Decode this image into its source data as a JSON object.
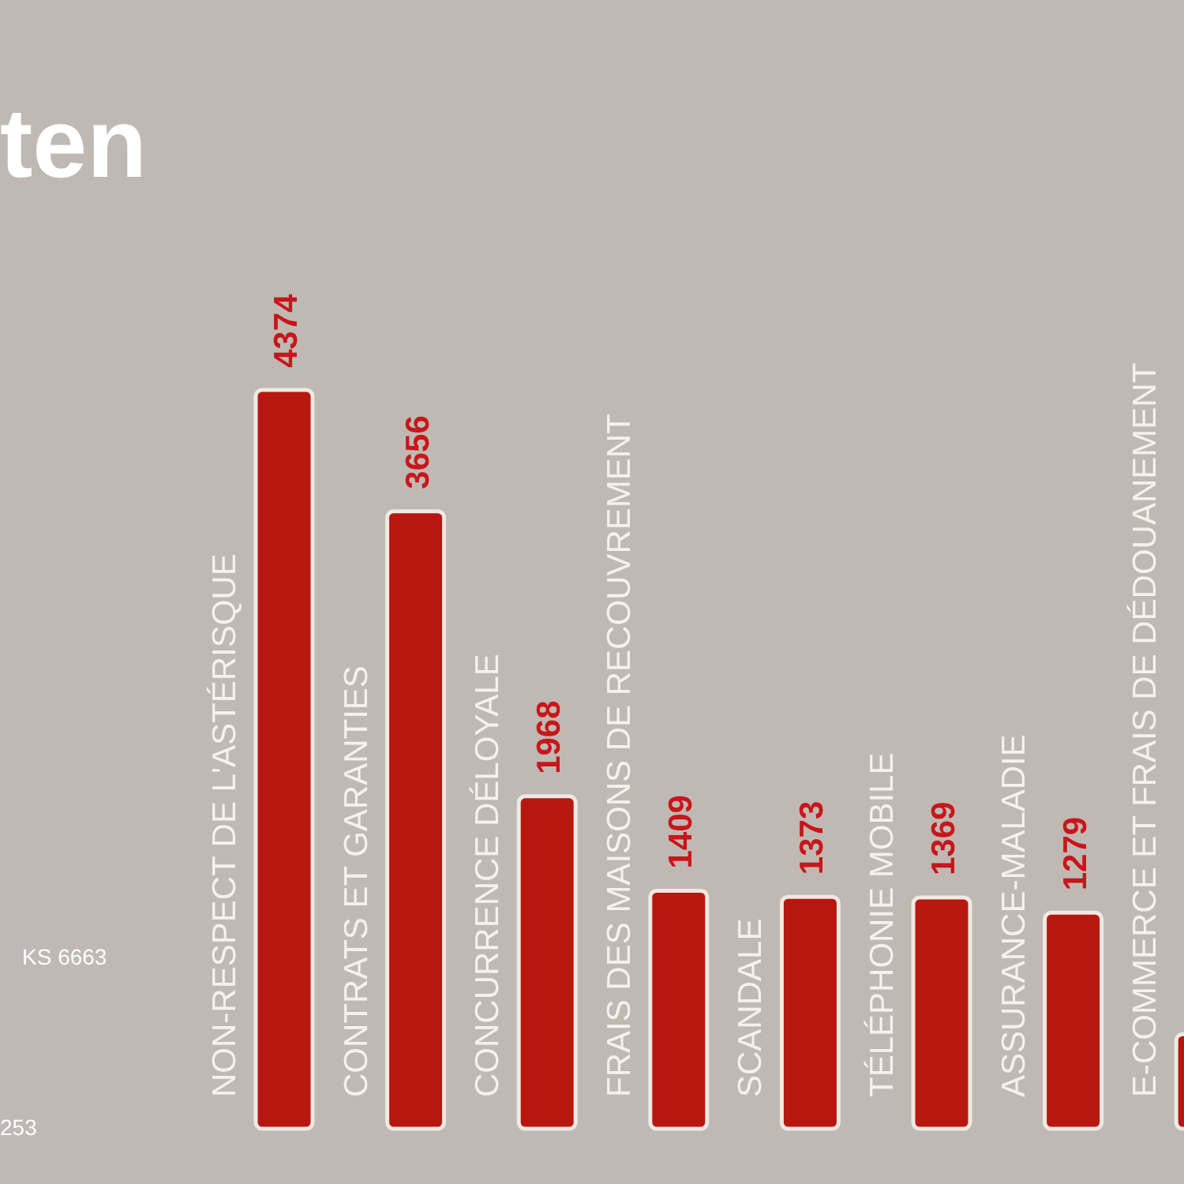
{
  "chart_data": {
    "type": "bar",
    "categories": [
      "NON-RESPECT DE L'ASTÉRISQUE",
      "CONTRATS ET GARANTIES",
      "CONCURRENCE DÉLOYALE",
      "FRAIS DES MAISONS DE RECOUVREMENT",
      "SCANDALE",
      "TÉLÉPHONIE MOBILE",
      "ASSURANCE-MALADIE",
      "E-COMMERCE ET FRAIS DE DÉDOUANEMENT"
    ],
    "values": [
      4374,
      3656,
      1968,
      1409,
      1373,
      1369,
      1279,
      560
    ],
    "value_labels": [
      "4374",
      "3656",
      "1968",
      "1409",
      "1373",
      "1369",
      "1279",
      null
    ],
    "color": "#b8170f",
    "annotations": [
      "ten",
      "KS 6663",
      "253"
    ]
  }
}
